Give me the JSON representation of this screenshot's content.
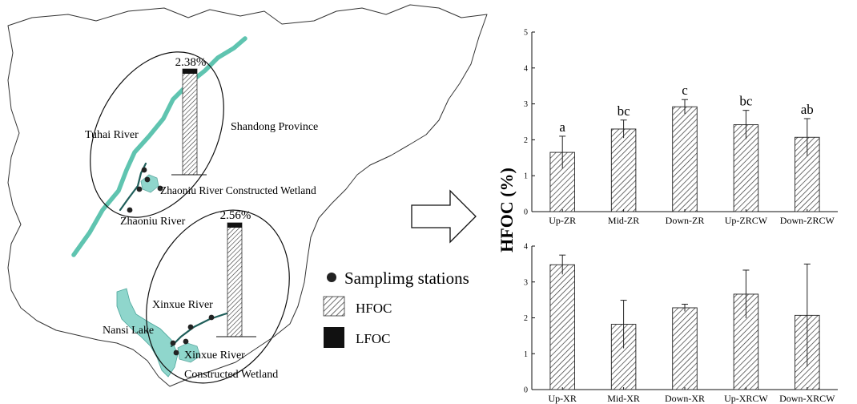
{
  "map": {
    "labels": {
      "province": "Shandong Province",
      "tuhai": "Tuhai River",
      "zhaoniu": "Zhaoniu River",
      "zhaoniu_cw": "Zhaoniu River Constructed Wetland",
      "xinxue": "Xinxue River",
      "nansi": "Nansi Lake",
      "xinxue_cw_line1": "Xinxue River",
      "xinxue_cw_line2": "Constructed Wetland"
    },
    "mini_bars": [
      {
        "name": "zhaoniu",
        "hfoc_pct": 2.38,
        "label": "2.38%"
      },
      {
        "name": "xinxue",
        "hfoc_pct": 2.56,
        "label": "2.56%"
      }
    ],
    "legend": {
      "sampling": "Samplimg stations",
      "hfoc": "HFOC",
      "lfoc": "LFOC"
    },
    "colors": {
      "river": "#5fc4b0",
      "lake": "#8fd6cc",
      "stream": "#1f5e5a",
      "outline": "#333333",
      "station": "#222222"
    }
  },
  "arrow_icon": "right-arrow-outline",
  "chart_data": [
    {
      "type": "bar",
      "panel": "top",
      "categories": [
        "Up-ZR",
        "Mid-ZR",
        "Down-ZR",
        "Up-ZRCW",
        "Down-ZRCW"
      ],
      "values": [
        1.65,
        2.3,
        2.92,
        2.42,
        2.07
      ],
      "errors": [
        0.45,
        0.25,
        0.2,
        0.4,
        0.52
      ],
      "significance": [
        "a",
        "bc",
        "c",
        "bc",
        "ab"
      ],
      "ylim": [
        0,
        5
      ],
      "yticks": [
        "0",
        "1",
        "2",
        "3",
        "4",
        "5"
      ],
      "bar_fill": "hatched"
    },
    {
      "type": "bar",
      "panel": "bottom",
      "categories": [
        "Up-XR",
        "Mid-XR",
        "Down-XR",
        "Up-XRCW",
        "Down-XRCW"
      ],
      "values": [
        3.48,
        1.82,
        2.28,
        2.66,
        2.07
      ],
      "errors": [
        0.27,
        0.67,
        0.1,
        0.67,
        1.43
      ],
      "ylim": [
        0,
        4
      ],
      "yticks": [
        "0",
        "1",
        "2",
        "3",
        "4"
      ],
      "bar_fill": "hatched"
    }
  ],
  "shared_ylabel": "HFOC (%)"
}
